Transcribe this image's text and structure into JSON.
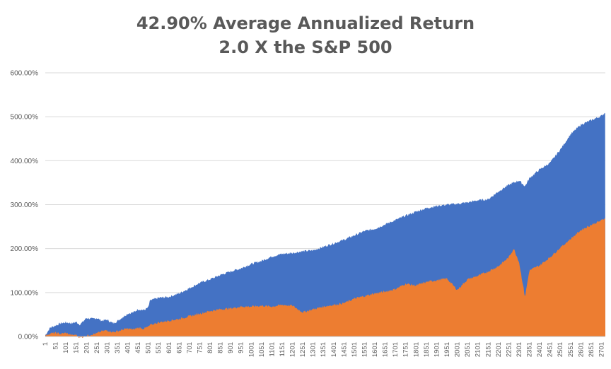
{
  "chart_data": {
    "type": "area",
    "title_lines": [
      "42.90% Average Annualized Return",
      "2.0 X the S&P 500"
    ],
    "xlabel": "",
    "ylabel": "",
    "ylim": [
      0,
      6
    ],
    "y_ticks": [
      {
        "value": 0,
        "label": "0.00%"
      },
      {
        "value": 1,
        "label": "100.00%"
      },
      {
        "value": 2,
        "label": "200.00%"
      },
      {
        "value": 3,
        "label": "300.00%"
      },
      {
        "value": 4,
        "label": "400.00%"
      },
      {
        "value": 5,
        "label": "500.00%"
      },
      {
        "value": 6,
        "label": "600.00%"
      }
    ],
    "x_range": [
      1,
      2720
    ],
    "x_tick_labels": [
      1,
      51,
      101,
      151,
      201,
      251,
      301,
      351,
      401,
      451,
      501,
      551,
      601,
      651,
      701,
      751,
      801,
      851,
      901,
      951,
      1001,
      1051,
      1101,
      1151,
      1201,
      1251,
      1301,
      1351,
      1401,
      1451,
      1501,
      1551,
      1601,
      1651,
      1701,
      1751,
      1801,
      1851,
      1901,
      1951,
      2001,
      2051,
      2101,
      2151,
      2201,
      2251,
      2301,
      2351,
      2401,
      2451,
      2501,
      2551,
      2601,
      2651,
      2701
    ],
    "grid": true,
    "legend": "none",
    "series": [
      {
        "color": "#4472c4",
        "x": [
          1,
          25,
          51,
          75,
          101,
          130,
          151,
          170,
          201,
          230,
          251,
          275,
          301,
          330,
          351,
          380,
          401,
          430,
          451,
          480,
          501,
          510,
          551,
          600,
          651,
          701,
          751,
          801,
          851,
          901,
          951,
          1001,
          1051,
          1101,
          1151,
          1201,
          1251,
          1301,
          1351,
          1401,
          1451,
          1501,
          1551,
          1601,
          1651,
          1701,
          1751,
          1801,
          1851,
          1901,
          1951,
          2001,
          2051,
          2101,
          2151,
          2201,
          2251,
          2275,
          2301,
          2330,
          2351,
          2401,
          2451,
          2501,
          2551,
          2601,
          2651,
          2701,
          2720
        ],
        "values": [
          0.03,
          0.2,
          0.25,
          0.3,
          0.32,
          0.3,
          0.33,
          0.27,
          0.42,
          0.4,
          0.42,
          0.36,
          0.38,
          0.3,
          0.35,
          0.45,
          0.52,
          0.55,
          0.62,
          0.6,
          0.66,
          0.82,
          0.88,
          0.9,
          0.98,
          1.1,
          1.22,
          1.3,
          1.4,
          1.48,
          1.55,
          1.65,
          1.72,
          1.82,
          1.88,
          1.9,
          1.94,
          1.96,
          2.04,
          2.12,
          2.2,
          2.3,
          2.4,
          2.45,
          2.55,
          2.65,
          2.75,
          2.84,
          2.92,
          2.97,
          3.0,
          3.02,
          3.05,
          3.1,
          3.12,
          3.3,
          3.45,
          3.5,
          3.55,
          3.42,
          3.6,
          3.8,
          3.95,
          4.25,
          4.6,
          4.82,
          4.92,
          5.02,
          5.1
        ]
      },
      {
        "color": "#ed7d31",
        "x": [
          1,
          25,
          51,
          75,
          101,
          130,
          151,
          170,
          201,
          230,
          251,
          275,
          301,
          330,
          351,
          380,
          401,
          430,
          451,
          480,
          501,
          510,
          551,
          600,
          651,
          701,
          751,
          801,
          851,
          901,
          951,
          1001,
          1051,
          1101,
          1151,
          1201,
          1251,
          1301,
          1351,
          1401,
          1451,
          1501,
          1551,
          1601,
          1651,
          1701,
          1751,
          1801,
          1851,
          1901,
          1951,
          2001,
          2051,
          2101,
          2151,
          2201,
          2251,
          2275,
          2301,
          2330,
          2351,
          2401,
          2451,
          2501,
          2551,
          2601,
          2651,
          2701,
          2720
        ],
        "values": [
          0.02,
          0.07,
          0.08,
          0.06,
          0.08,
          0.03,
          0.04,
          -0.03,
          0.02,
          0.05,
          0.07,
          0.12,
          0.14,
          0.1,
          0.12,
          0.16,
          0.18,
          0.16,
          0.2,
          0.18,
          0.22,
          0.26,
          0.32,
          0.36,
          0.4,
          0.46,
          0.52,
          0.58,
          0.62,
          0.64,
          0.68,
          0.68,
          0.7,
          0.68,
          0.72,
          0.7,
          0.55,
          0.62,
          0.68,
          0.72,
          0.76,
          0.86,
          0.92,
          0.98,
          1.02,
          1.08,
          1.2,
          1.16,
          1.24,
          1.28,
          1.32,
          1.06,
          1.3,
          1.38,
          1.48,
          1.6,
          1.8,
          2.0,
          1.7,
          0.9,
          1.5,
          1.62,
          1.8,
          2.02,
          2.22,
          2.42,
          2.54,
          2.64,
          2.7
        ]
      }
    ]
  }
}
